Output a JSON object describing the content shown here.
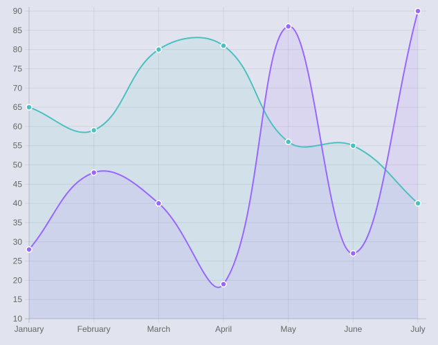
{
  "chart_data": {
    "type": "line",
    "categories": [
      "January",
      "February",
      "March",
      "April",
      "May",
      "June",
      "July"
    ],
    "series": [
      {
        "values": [
          65,
          59,
          80,
          81,
          56,
          55,
          40
        ],
        "color": "#4bc0c0"
      },
      {
        "values": [
          28,
          48,
          40,
          19,
          86,
          27,
          90
        ],
        "color": "#9966ff"
      }
    ],
    "ylim": [
      10,
      90
    ],
    "ytick_step": 5,
    "grid": true,
    "fill": "to-origin",
    "curve": "smooth",
    "xlabel": "",
    "ylabel": ""
  }
}
